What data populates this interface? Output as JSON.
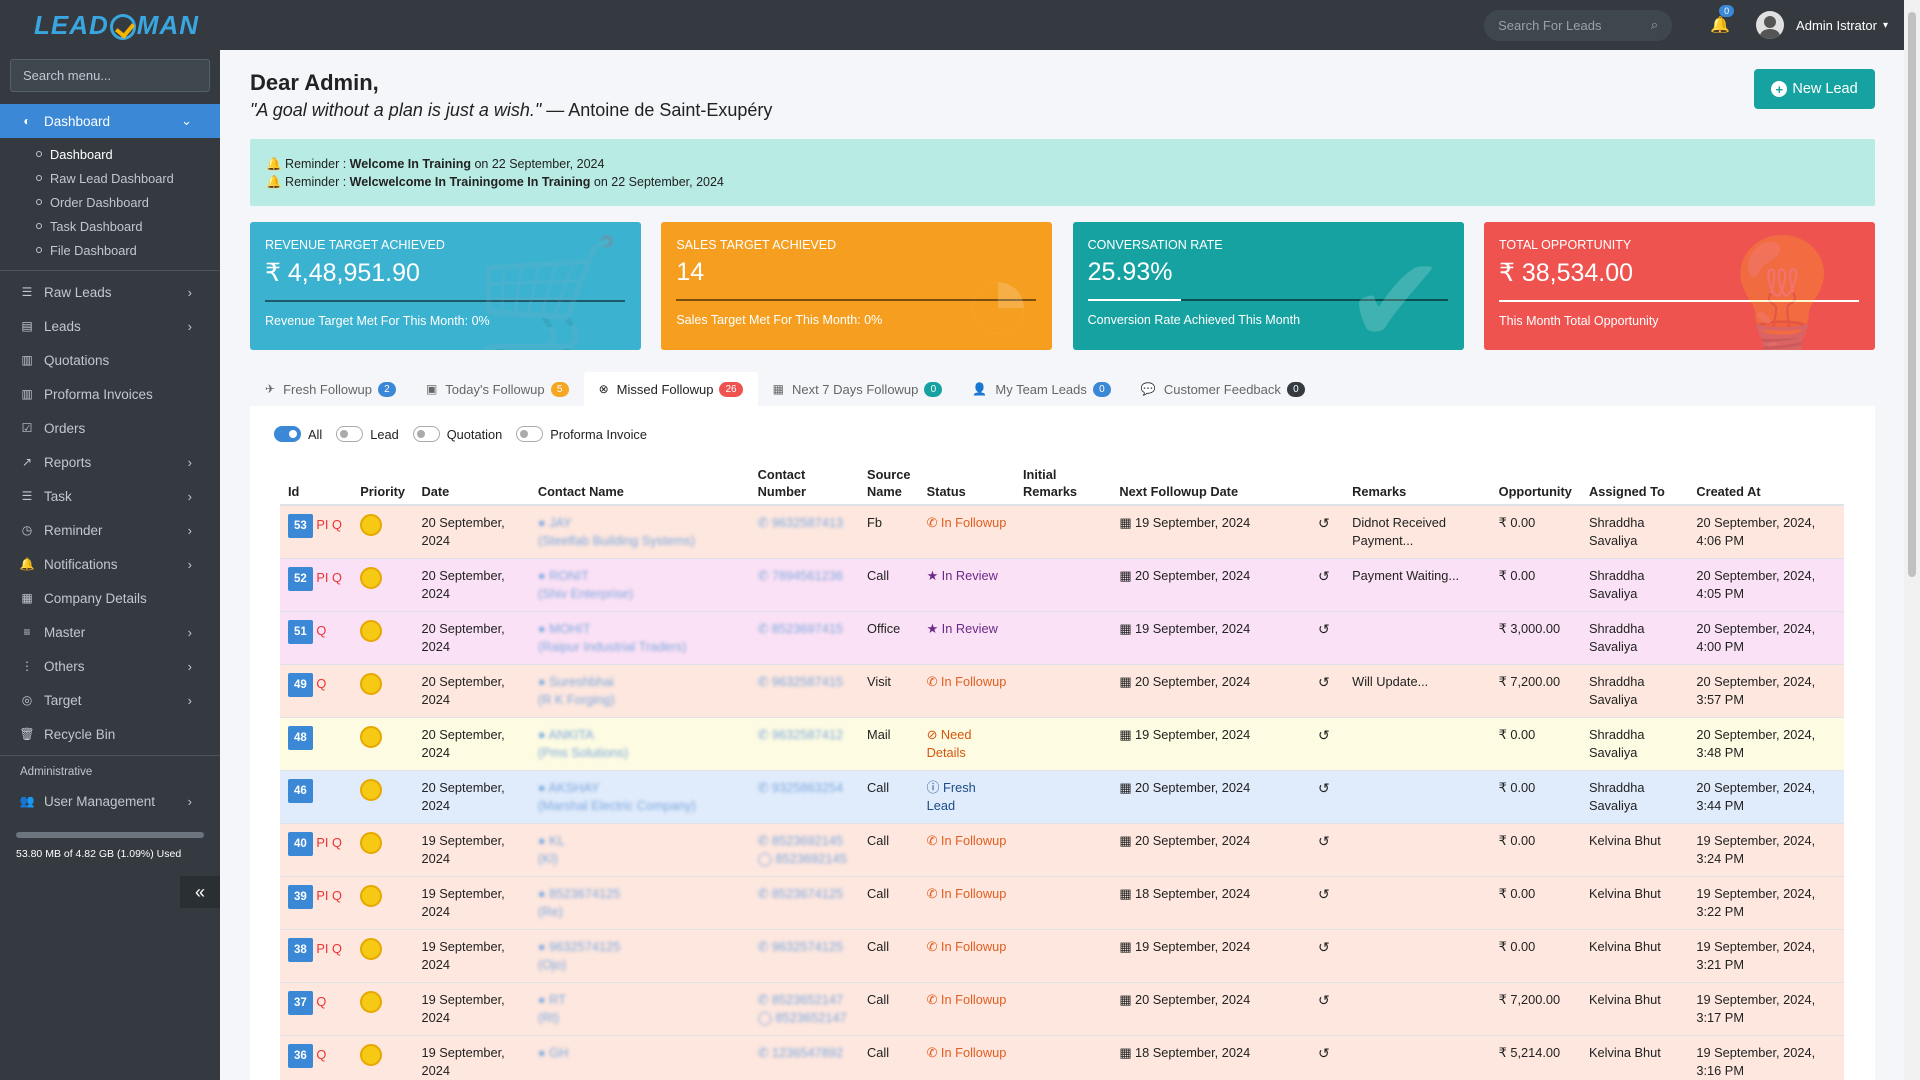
{
  "app": {
    "logo": "LEAD  MAN"
  },
  "sidebar": {
    "search_placeholder": "Search menu...",
    "dashboard": "Dashboard",
    "sub": [
      "Dashboard",
      "Raw Lead Dashboard",
      "Order Dashboard",
      "Task Dashboard",
      "File Dashboard"
    ],
    "items": [
      "Raw Leads",
      "Leads",
      "Quotations",
      "Proforma Invoices",
      "Orders",
      "Reports",
      "Task",
      "Reminder",
      "Notifications",
      "Company Details",
      "Master",
      "Others",
      "Target",
      "Recycle Bin"
    ],
    "admin_head": "Administrative",
    "user_mgmt": "User Management",
    "storage": "53.80 MB of 4.82 GB (1.09%) Used"
  },
  "topbar": {
    "search_placeholder": "Search For Leads",
    "notif_count": "0",
    "user": "Admin Istrator"
  },
  "greeting": {
    "title": "Dear Admin,",
    "quote": "\"A goal without a plan is just a wish.\"",
    "author": " — Antoine de Saint-Exupéry",
    "new_lead": "New Lead"
  },
  "reminders": [
    {
      "prefix": "Reminder : ",
      "title": "Welcome In Training",
      "suffix": " on 22 September, 2024"
    },
    {
      "prefix": "Reminder : ",
      "title": "Welcwelcome In Trainingome In Training",
      "suffix": " on 22 September, 2024"
    }
  ],
  "cards": [
    {
      "title": "Revenue Target Achieved",
      "value": "₹ 4,48,951.90",
      "sub": "Revenue Target Met For This Month: 0%",
      "color": "#3bb2d0",
      "progress": 0
    },
    {
      "title": "Sales Target Achieved",
      "value": "14",
      "sub": "Sales Target Met For This Month: 0%",
      "color": "#f59e1f",
      "progress": 0
    },
    {
      "title": "Conversation Rate",
      "value": "25.93%",
      "sub": "Conversion Rate Achieved This Month",
      "color": "#17a2a2",
      "progress": 25.93
    },
    {
      "title": "Total Opportunity",
      "value": "₹ 38,534.00",
      "sub": "This Month Total Opportunity",
      "color": "#ef5350",
      "progress": 100
    }
  ],
  "tabs": [
    {
      "label": "Fresh Followup",
      "count": "2",
      "color": "#3a88d6"
    },
    {
      "label": "Today's Followup",
      "count": "5",
      "color": "#f5a623"
    },
    {
      "label": "Missed Followup",
      "count": "26",
      "color": "#ef5350"
    },
    {
      "label": "Next 7 Days Followup",
      "count": "0",
      "color": "#17a2a2"
    },
    {
      "label": "My Team Leads",
      "count": "0",
      "color": "#3a88d6"
    },
    {
      "label": "Customer Feedback",
      "count": "0",
      "color": "#343a40"
    }
  ],
  "filters": [
    "All",
    "Lead",
    "Quotation",
    "Proforma Invoice"
  ],
  "columns": [
    "Id",
    "Priority",
    "Date",
    "Contact Name",
    "Contact Number",
    "Source Name",
    "Status",
    "Initial Remarks",
    "Next Followup Date",
    "",
    "Remarks",
    "Opportunity",
    "Assigned To",
    "Created At"
  ],
  "rows": [
    {
      "id": "53",
      "pi": "PI",
      "q": "Q",
      "date": "20 September, 2024",
      "name": "JAY",
      "company": "(Steelfab Building Systems)",
      "phone": "9632587413",
      "phone2": "",
      "source": "Fb",
      "status": "In Followup",
      "stype": "follow",
      "next": "19 September, 2024",
      "remarks": "Didnot Received Payment...",
      "opp": "₹ 0.00",
      "assigned": "Shraddha Savaliya",
      "created": "20 September, 2024, 4:06 PM",
      "bg": "#fde7df"
    },
    {
      "id": "52",
      "pi": "PI",
      "q": "Q",
      "date": "20 September, 2024",
      "name": "RONIT",
      "company": "(Shiv Enterprise)",
      "phone": "7894561236",
      "phone2": "",
      "source": "Call",
      "status": "In Review",
      "stype": "review",
      "next": "20 September, 2024",
      "remarks": "Payment Waiting...",
      "opp": "₹ 0.00",
      "assigned": "Shraddha Savaliya",
      "created": "20 September, 2024, 4:05 PM",
      "bg": "#fbe1f5"
    },
    {
      "id": "51",
      "pi": "",
      "q": "Q",
      "date": "20 September, 2024",
      "name": "MOHIT",
      "company": "(Raipur Industrial Traders)",
      "phone": "8523697415",
      "phone2": "",
      "source": "Office",
      "status": "In Review",
      "stype": "review",
      "next": "19 September, 2024",
      "remarks": "",
      "opp": "₹ 3,000.00",
      "assigned": "Shraddha Savaliya",
      "created": "20 September, 2024, 4:00 PM",
      "bg": "#fbe1f5"
    },
    {
      "id": "49",
      "pi": "",
      "q": "Q",
      "date": "20 September, 2024",
      "name": "Sureshbhai",
      "company": "(R K Forging)",
      "phone": "9632587415",
      "phone2": "",
      "source": "Visit",
      "status": "In Followup",
      "stype": "follow",
      "next": "20 September, 2024",
      "remarks": "Will Update...",
      "opp": "₹ 7,200.00",
      "assigned": "Shraddha Savaliya",
      "created": "20 September, 2024, 3:57 PM",
      "bg": "#fde7df"
    },
    {
      "id": "48",
      "pi": "",
      "q": "",
      "date": "20 September, 2024",
      "name": "ANKITA",
      "company": "(Pms Solutions)",
      "phone": "9632587412",
      "phone2": "",
      "source": "Mail",
      "status": "Need Details",
      "stype": "need",
      "next": "19 September, 2024",
      "remarks": "",
      "opp": "₹ 0.00",
      "assigned": "Shraddha Savaliya",
      "created": "20 September, 2024, 3:48 PM",
      "bg": "#fdfbe2"
    },
    {
      "id": "46",
      "pi": "",
      "q": "",
      "date": "20 September, 2024",
      "name": "AKSHAY",
      "company": "(Marshal Electric Company)",
      "phone": "9325863254",
      "phone2": "",
      "source": "Call",
      "status": "Fresh Lead",
      "stype": "fresh",
      "next": "20 September, 2024",
      "remarks": "",
      "opp": "₹ 0.00",
      "assigned": "Shraddha Savaliya",
      "created": "20 September, 2024, 3:44 PM",
      "bg": "#e0ebfb"
    },
    {
      "id": "40",
      "pi": "PI",
      "q": "Q",
      "date": "19 September, 2024",
      "name": "KL",
      "company": "(Kl)",
      "phone": "8523692145",
      "phone2": "8523692145",
      "source": "Call",
      "status": "In Followup",
      "stype": "follow",
      "next": "20 September, 2024",
      "remarks": "",
      "opp": "₹ 0.00",
      "assigned": "Kelvina Bhut",
      "created": "19 September, 2024, 3:24 PM",
      "bg": "#fde7df"
    },
    {
      "id": "39",
      "pi": "PI",
      "q": "Q",
      "date": "19 September, 2024",
      "name": "8523674125",
      "company": "(Re)",
      "phone": "8523674125",
      "phone2": "",
      "source": "Call",
      "status": "In Followup",
      "stype": "follow",
      "next": "18 September, 2024",
      "remarks": "",
      "opp": "₹ 0.00",
      "assigned": "Kelvina Bhut",
      "created": "19 September, 2024, 3:22 PM",
      "bg": "#fde7df"
    },
    {
      "id": "38",
      "pi": "PI",
      "q": "Q",
      "date": "19 September, 2024",
      "name": "9632574125",
      "company": "(Ojo)",
      "phone": "9632574125",
      "phone2": "",
      "source": "Call",
      "status": "In Followup",
      "stype": "follow",
      "next": "19 September, 2024",
      "remarks": "",
      "opp": "₹ 0.00",
      "assigned": "Kelvina Bhut",
      "created": "19 September, 2024, 3:21 PM",
      "bg": "#fde7df"
    },
    {
      "id": "37",
      "pi": "",
      "q": "Q",
      "date": "19 September, 2024",
      "name": "RT",
      "company": "(Rt)",
      "phone": "8523652147",
      "phone2": "8523652147",
      "source": "Call",
      "status": "In Followup",
      "stype": "follow",
      "next": "20 September, 2024",
      "remarks": "",
      "opp": "₹ 7,200.00",
      "assigned": "Kelvina Bhut",
      "created": "19 September, 2024, 3:17 PM",
      "bg": "#fde7df"
    },
    {
      "id": "36",
      "pi": "",
      "q": "Q",
      "date": "19 September, 2024",
      "name": "GH",
      "company": "",
      "phone": "1236547892",
      "phone2": "",
      "source": "Call",
      "status": "In Followup",
      "stype": "follow",
      "next": "18 September, 2024",
      "remarks": "",
      "opp": "₹ 5,214.00",
      "assigned": "Kelvina Bhut",
      "created": "19 September, 2024, 3:16 PM",
      "bg": "#fde7df"
    }
  ]
}
